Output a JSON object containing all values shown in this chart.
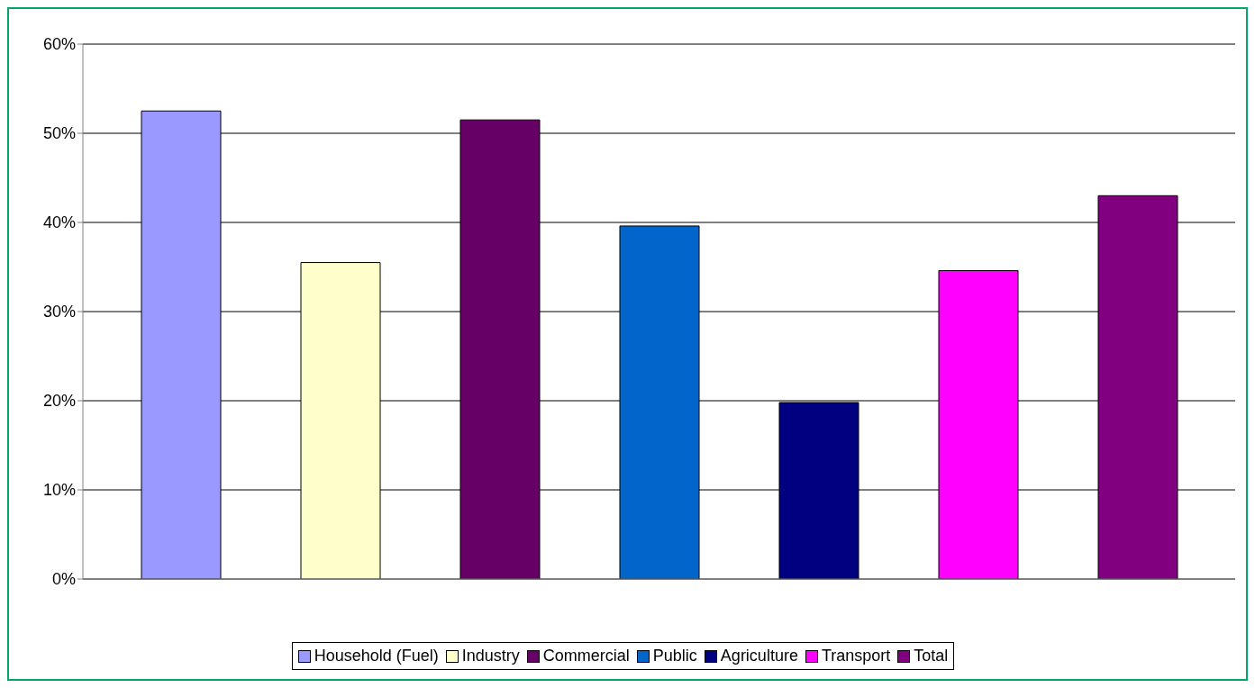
{
  "chart_data": {
    "type": "bar",
    "categories": [
      null
    ],
    "series": [
      {
        "name": "Household (Fuel)",
        "color": "#9999ff",
        "values": [
          52.5
        ]
      },
      {
        "name": "Industry",
        "color": "#ffffcc",
        "values": [
          35.5
        ]
      },
      {
        "name": "Commercial",
        "color": "#660066",
        "values": [
          51.5
        ]
      },
      {
        "name": "Public",
        "color": "#0066cc",
        "values": [
          39.6
        ]
      },
      {
        "name": "Agriculture",
        "color": "#000080",
        "values": [
          19.8
        ]
      },
      {
        "name": "Transport",
        "color": "#ff00ff",
        "values": [
          34.6
        ]
      },
      {
        "name": "Total",
        "color": "#800080",
        "values": [
          43.0
        ]
      }
    ],
    "ylim": [
      0,
      60
    ],
    "yticks": [
      {
        "value": 0,
        "label": "0%"
      },
      {
        "value": 10,
        "label": "10%"
      },
      {
        "value": 20,
        "label": "20%"
      },
      {
        "value": 30,
        "label": "30%"
      },
      {
        "value": 40,
        "label": "40%"
      },
      {
        "value": 50,
        "label": "50%"
      },
      {
        "value": 60,
        "label": "60%"
      }
    ],
    "grid": "y",
    "legend": "bottom"
  }
}
